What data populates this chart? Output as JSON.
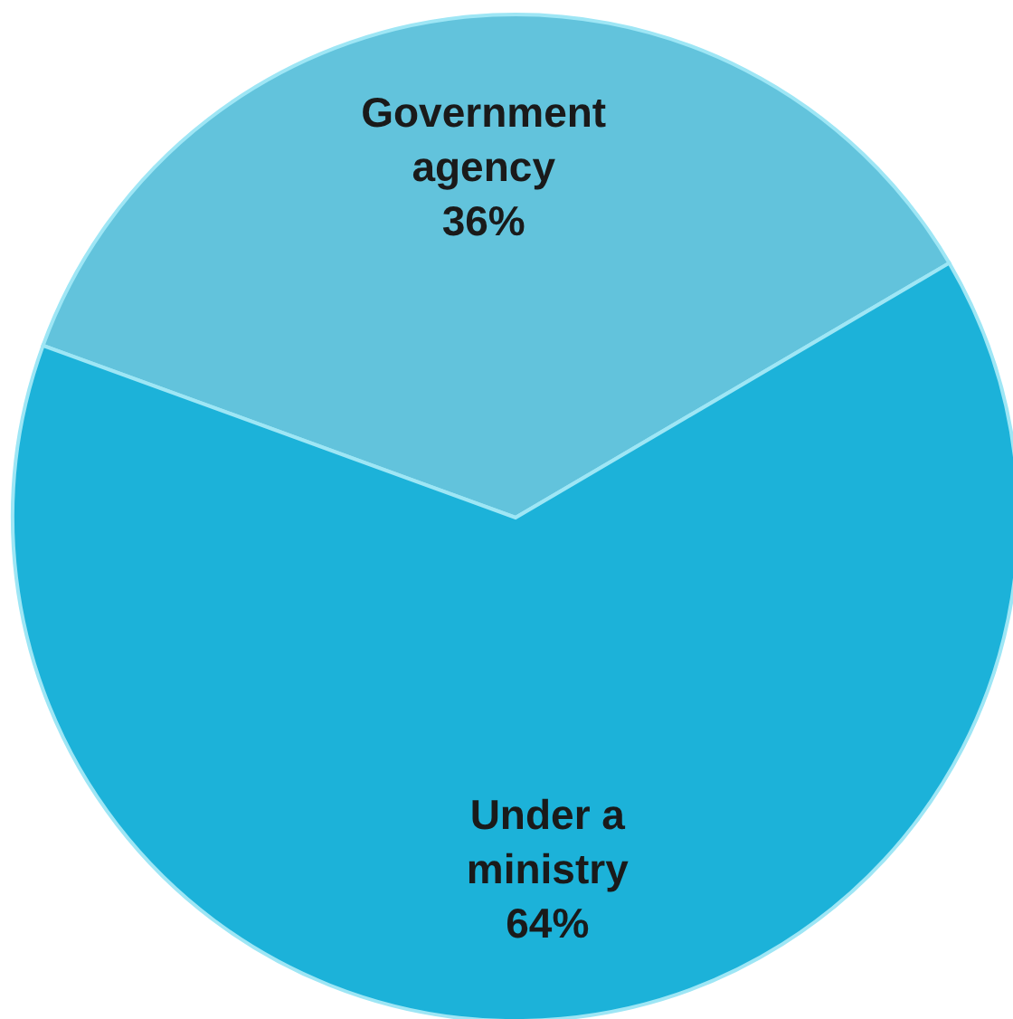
{
  "chart_data": {
    "type": "pie",
    "categories": [
      "Government agency",
      "Under a ministry"
    ],
    "values": [
      36,
      64
    ],
    "colors": [
      "#62c3dc",
      "#1cb2d9"
    ],
    "value_labels": [
      "36%",
      "64%"
    ]
  }
}
